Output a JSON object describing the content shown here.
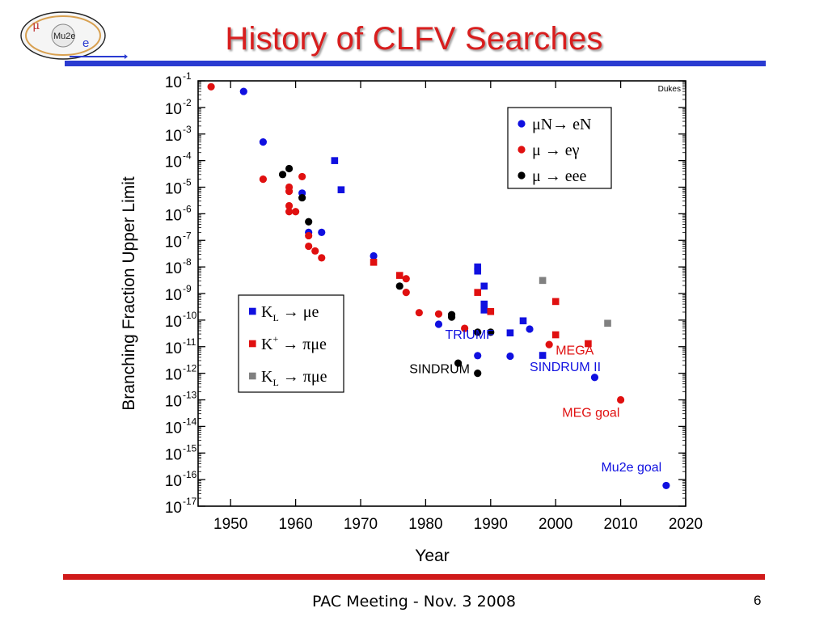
{
  "header": {
    "title": "History of CLFV Searches",
    "logo_text": "Mu2e",
    "logo_mu": "μ",
    "logo_e": "e"
  },
  "footer": {
    "text": "PAC Meeting - Nov. 3 2008",
    "page_number": "6"
  },
  "colors": {
    "title": "#d81e1e",
    "top_bar": "#2a3bd1",
    "bottom_bar": "#d01a1a"
  },
  "chart_data": {
    "type": "scatter",
    "xlabel": "Year",
    "ylabel": "Branching Fraction Upper Limit",
    "xlim": [
      1945,
      2020
    ],
    "x_ticks": [
      1950,
      1960,
      1970,
      1980,
      1990,
      2000,
      2010,
      2020
    ],
    "ylim_log10": [
      -17,
      -1
    ],
    "y_tick_labels": [
      {
        "exp": -1,
        "base": "10",
        "sup": "-1"
      },
      {
        "exp": -2,
        "base": "10",
        "sup": "-2"
      },
      {
        "exp": -3,
        "base": "10",
        "sup": "-3"
      },
      {
        "exp": -4,
        "base": "10",
        "sup": "-4"
      },
      {
        "exp": -5,
        "base": "10",
        "sup": "-5"
      },
      {
        "exp": -6,
        "base": "10",
        "sup": "-6"
      },
      {
        "exp": -7,
        "base": "10",
        "sup": "-7"
      },
      {
        "exp": -8,
        "base": "10",
        "sup": "-8"
      },
      {
        "exp": -9,
        "base": "10",
        "sup": "-9"
      },
      {
        "exp": -10,
        "base": "10",
        "sup": "-10"
      },
      {
        "exp": -11,
        "base": "10",
        "sup": "-11"
      },
      {
        "exp": -12,
        "base": "10",
        "sup": "-12"
      },
      {
        "exp": -13,
        "base": "10",
        "sup": "-13"
      },
      {
        "exp": -14,
        "base": "10",
        "sup": "-14"
      },
      {
        "exp": -15,
        "base": "10",
        "sup": "-15"
      },
      {
        "exp": -16,
        "base": "10",
        "sup": "-16"
      },
      {
        "exp": -17,
        "base": "10",
        "sup": "-17"
      }
    ],
    "credit": "Dukes",
    "grid": false,
    "series": [
      {
        "id": "muN-eN",
        "marker": "circle",
        "color": "#1010e0",
        "points": [
          {
            "x": 1952,
            "y": 0.04
          },
          {
            "x": 1955,
            "y": 0.0005
          },
          {
            "x": 1961,
            "y": 6e-06
          },
          {
            "x": 1962,
            "y": 2e-07
          },
          {
            "x": 1964,
            "y": 2e-07
          },
          {
            "x": 1972,
            "y": 2.6e-08
          },
          {
            "x": 1982,
            "y": 7e-11
          },
          {
            "x": 1988,
            "y": 4.6e-12
          },
          {
            "x": 1993,
            "y": 4.4e-12
          },
          {
            "x": 1996,
            "y": 4.6e-11
          },
          {
            "x": 2006,
            "y": 7e-13
          },
          {
            "x": 2017,
            "y": 6e-17
          }
        ]
      },
      {
        "id": "mu-egamma",
        "marker": "circle",
        "color": "#e01010",
        "points": [
          {
            "x": 1947,
            "y": 0.06
          },
          {
            "x": 1955,
            "y": 2e-05
          },
          {
            "x": 1959,
            "y": 1e-05
          },
          {
            "x": 1959,
            "y": 7e-06
          },
          {
            "x": 1959,
            "y": 2e-06
          },
          {
            "x": 1959,
            "y": 1.2e-06
          },
          {
            "x": 1960,
            "y": 1.2e-06
          },
          {
            "x": 1961,
            "y": 2.5e-05
          },
          {
            "x": 1962,
            "y": 1.5e-07
          },
          {
            "x": 1962,
            "y": 6e-08
          },
          {
            "x": 1963,
            "y": 4e-08
          },
          {
            "x": 1964,
            "y": 2.2e-08
          },
          {
            "x": 1977,
            "y": 3.6e-09
          },
          {
            "x": 1977,
            "y": 1.1e-09
          },
          {
            "x": 1979,
            "y": 1.9e-10
          },
          {
            "x": 1982,
            "y": 1.7e-10
          },
          {
            "x": 1986,
            "y": 4.9e-11
          },
          {
            "x": 1999,
            "y": 1.2e-11
          },
          {
            "x": 2010,
            "y": 1e-13
          }
        ]
      },
      {
        "id": "mu-eee",
        "marker": "circle",
        "color": "#000000",
        "points": [
          {
            "x": 1958,
            "y": 3e-05
          },
          {
            "x": 1959,
            "y": 5e-05
          },
          {
            "x": 1961,
            "y": 4e-06
          },
          {
            "x": 1962,
            "y": 5e-07
          },
          {
            "x": 1976,
            "y": 1.9e-09
          },
          {
            "x": 1984,
            "y": 1.6e-10
          },
          {
            "x": 1984,
            "y": 1.3e-10
          },
          {
            "x": 1985,
            "y": 2.4e-12
          },
          {
            "x": 1988,
            "y": 3.5e-11
          },
          {
            "x": 1988,
            "y": 1e-12
          },
          {
            "x": 1990,
            "y": 3.5e-11
          }
        ]
      },
      {
        "id": "KL-mue",
        "marker": "square",
        "color": "#1010e0",
        "points": [
          {
            "x": 1966,
            "y": 0.0001
          },
          {
            "x": 1967,
            "y": 8e-06
          },
          {
            "x": 1988,
            "y": 1e-08
          },
          {
            "x": 1988,
            "y": 7e-09
          },
          {
            "x": 1989,
            "y": 1.9e-09
          },
          {
            "x": 1989,
            "y": 4e-10
          },
          {
            "x": 1989,
            "y": 2.4e-10
          },
          {
            "x": 1993,
            "y": 3.3e-11
          },
          {
            "x": 1995,
            "y": 9.4e-11
          },
          {
            "x": 1998,
            "y": 4.7e-12
          }
        ]
      },
      {
        "id": "Kplus-pimue",
        "marker": "square",
        "color": "#e01010",
        "points": [
          {
            "x": 1972,
            "y": 1.5e-08
          },
          {
            "x": 1976,
            "y": 4.8e-09
          },
          {
            "x": 1988,
            "y": 1.1e-09
          },
          {
            "x": 1990,
            "y": 2.1e-10
          },
          {
            "x": 2000,
            "y": 5e-10
          },
          {
            "x": 2000,
            "y": 2.8e-11
          },
          {
            "x": 2005,
            "y": 1.3e-11
          }
        ]
      },
      {
        "id": "KL-pimue",
        "marker": "square",
        "color": "#808080",
        "points": [
          {
            "x": 1998,
            "y": 3.1e-09
          },
          {
            "x": 2008,
            "y": 7.6e-11
          }
        ]
      }
    ],
    "legends": [
      {
        "position": "top-right",
        "entries": [
          {
            "series": "muN-eN",
            "text": "μN→ eN"
          },
          {
            "series": "mu-egamma",
            "text": "μ → eγ"
          },
          {
            "series": "mu-eee",
            "text": "μ → eee"
          }
        ]
      },
      {
        "position": "middle-left",
        "entries": [
          {
            "series": "KL-mue",
            "main": "K",
            "sub": "L",
            "sup": "",
            "rest": " → μe"
          },
          {
            "series": "Kplus-pimue",
            "main": "K",
            "sub": "",
            "sup": "+",
            "rest": " → πμe"
          },
          {
            "series": "KL-pimue",
            "main": "K",
            "sub": "L",
            "sup": "",
            "rest": " → πμe"
          }
        ]
      }
    ],
    "annotations": [
      {
        "text": "TRIUMF",
        "x": 1983,
        "y": 2e-11,
        "color": "#1010e0"
      },
      {
        "text": "SINDRUM",
        "x": 1977.5,
        "y": 1e-12,
        "color": "#000000"
      },
      {
        "text": "MEGA",
        "x": 2000,
        "y": 5e-12,
        "color": "#e01010"
      },
      {
        "text": "SINDRUM II",
        "x": 1996,
        "y": 1.2e-12,
        "color": "#1010e0"
      },
      {
        "text": "MEG goal",
        "x": 2001,
        "y": 2.3e-14,
        "color": "#e01010"
      },
      {
        "text": "Mu2e goal",
        "x": 2007,
        "y": 2e-16,
        "color": "#1010e0"
      }
    ]
  }
}
